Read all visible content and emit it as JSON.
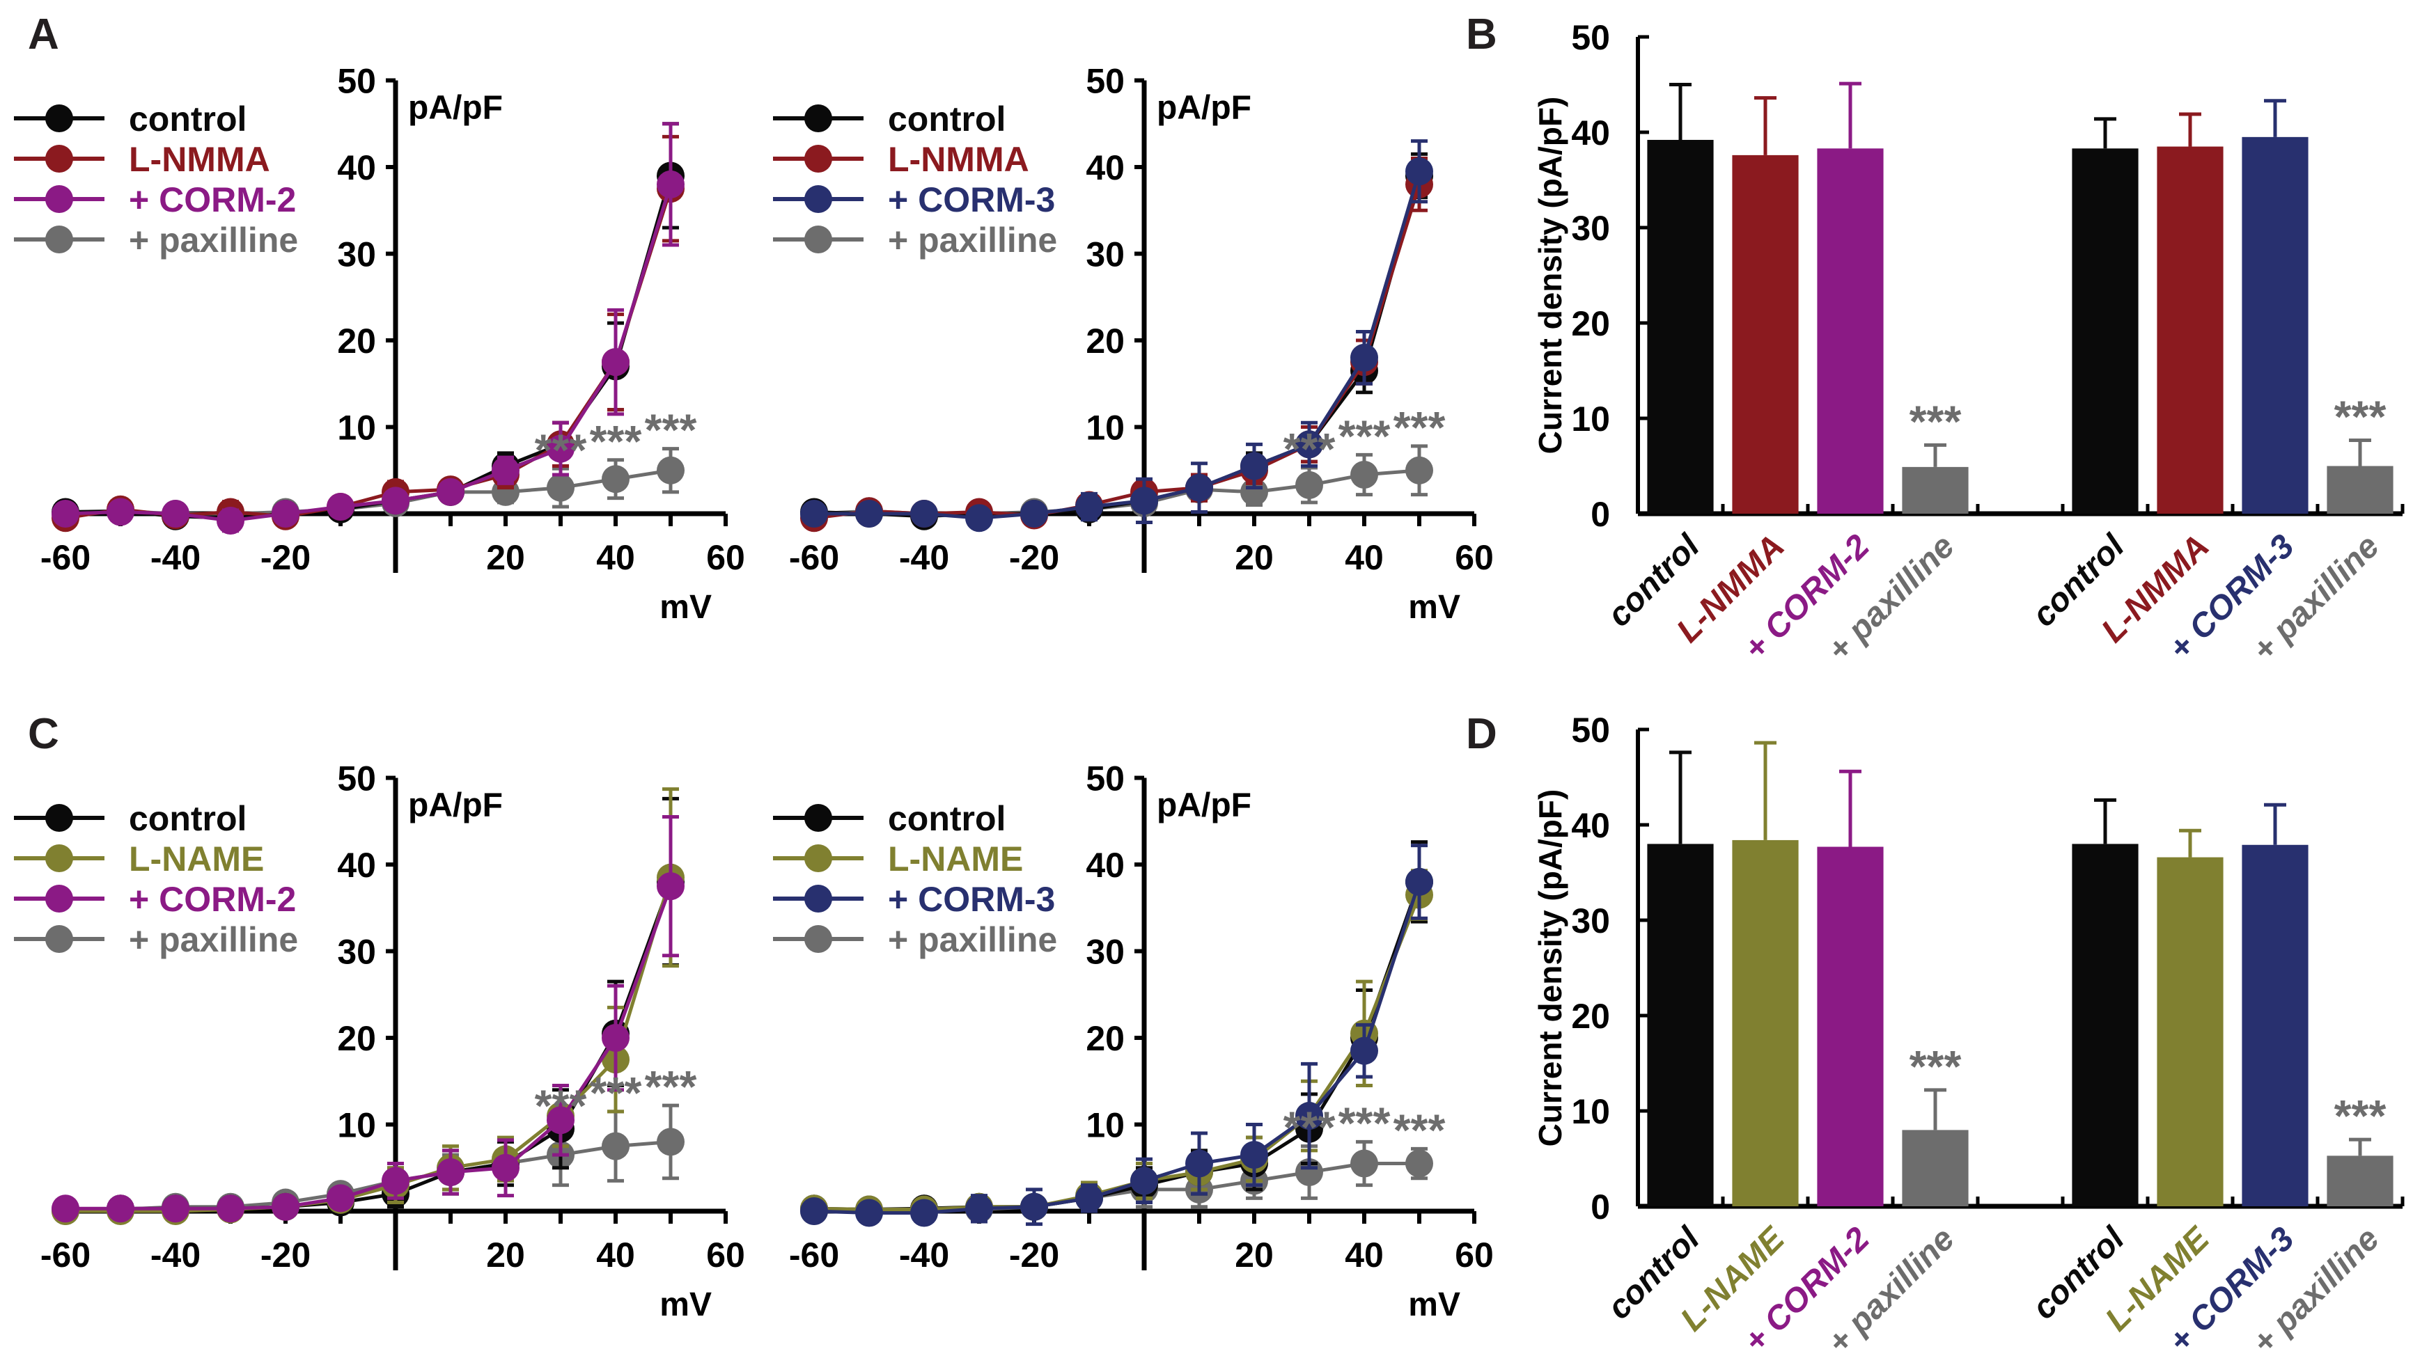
{
  "colors": {
    "control": "#0a0a0a",
    "L-NMMA": "#8b1a1f",
    "L-NAME": "#808030",
    "+ CORM-2": "#8b1a85",
    "+ CORM-3": "#28306f",
    "+ paxilline": "#6d6d6d"
  },
  "chart_data": [
    {
      "id": "A-left",
      "panel_label": "A",
      "type": "line",
      "xlabel": "mV",
      "ylabel": "pA/pF",
      "xlim": [
        -60,
        60
      ],
      "ylim": [
        0,
        50
      ],
      "xticks": [
        -60,
        -40,
        -20,
        20,
        40,
        60
      ],
      "yticks": [
        10,
        20,
        30,
        40,
        50
      ],
      "x": [
        -60,
        -50,
        -40,
        -30,
        -20,
        -10,
        0,
        10,
        20,
        30,
        40,
        50
      ],
      "legend_position": "top-left",
      "annotation": "***",
      "series": [
        {
          "name": "control",
          "values": [
            0.2,
            0.3,
            -0.3,
            -0.5,
            0,
            0.5,
            1.5,
            2.5,
            5.5,
            8,
            17,
            39
          ],
          "errors": [
            0.5,
            0.8,
            0.8,
            1.2,
            0.8,
            0.8,
            1,
            1,
            1.5,
            2.5,
            5,
            6
          ]
        },
        {
          "name": "L-NMMA",
          "values": [
            -0.5,
            0.5,
            -0.2,
            0.2,
            -0.3,
            0.8,
            2.5,
            2.8,
            4.5,
            8,
            17.5,
            37.5
          ],
          "errors": [
            0.8,
            0.8,
            0.8,
            1.2,
            1,
            1,
            1.2,
            1,
            1.5,
            2.5,
            5.5,
            6
          ]
        },
        {
          "name": "+ CORM-2",
          "values": [
            0,
            0.2,
            0,
            -0.8,
            0,
            0.8,
            1.5,
            2.5,
            5,
            7.5,
            17.5,
            38
          ],
          "errors": [
            0.5,
            0.6,
            0.8,
            1.2,
            0.8,
            1,
            1,
            1,
            1.5,
            3,
            6,
            7
          ]
        },
        {
          "name": "+ paxilline",
          "values": [
            0,
            0.3,
            0,
            0,
            0.2,
            0.5,
            1.2,
            2.5,
            2.5,
            3,
            4,
            5
          ],
          "errors": [
            0.3,
            0.3,
            0.3,
            0.3,
            0.3,
            0.5,
            0.8,
            1,
            1.2,
            2.2,
            2.2,
            2.5
          ]
        }
      ]
    },
    {
      "id": "A-right",
      "panel_label": "",
      "type": "line",
      "xlabel": "mV",
      "ylabel": "pA/pF",
      "xlim": [
        -60,
        60
      ],
      "ylim": [
        0,
        50
      ],
      "xticks": [
        -60,
        -40,
        -20,
        20,
        40,
        60
      ],
      "yticks": [
        10,
        20,
        30,
        40,
        50
      ],
      "x": [
        -60,
        -50,
        -40,
        -30,
        -20,
        -10,
        0,
        10,
        20,
        30,
        40,
        50
      ],
      "legend_position": "top-left",
      "annotation": "***",
      "series": [
        {
          "name": "control",
          "values": [
            0.2,
            0,
            -0.3,
            0,
            0,
            0.5,
            1.5,
            3,
            5.5,
            8,
            16.5,
            39
          ],
          "errors": [
            0.5,
            0.5,
            0.5,
            0.8,
            0.8,
            1,
            1,
            1.5,
            1.5,
            2,
            2.5,
            2.5
          ]
        },
        {
          "name": "L-NMMA",
          "values": [
            -0.5,
            0.3,
            0,
            0.2,
            -0.2,
            1,
            2.5,
            3,
            5,
            8,
            17.5,
            38
          ],
          "errors": [
            0.8,
            0.8,
            0.5,
            0.8,
            0.8,
            1,
            1,
            1.5,
            1.5,
            2,
            2.5,
            3
          ]
        },
        {
          "name": "+ CORM-3",
          "values": [
            0,
            0,
            0,
            -0.5,
            0,
            0.8,
            1.5,
            3,
            5.5,
            8,
            18,
            39.5
          ],
          "errors": [
            0.5,
            0.5,
            0.5,
            0.8,
            0.8,
            1.5,
            2.5,
            2.8,
            2.5,
            2.5,
            3,
            3.5
          ]
        },
        {
          "name": "+ paxilline",
          "values": [
            0,
            0.3,
            0,
            0,
            0.2,
            0.5,
            1.2,
            2.8,
            2.5,
            3.3,
            4.5,
            5
          ],
          "errors": [
            0.3,
            0.3,
            0.3,
            0.3,
            0.3,
            0.5,
            0.8,
            1,
            1.5,
            2,
            2.3,
            2.8
          ]
        }
      ]
    },
    {
      "id": "B",
      "panel_label": "B",
      "type": "bar",
      "ylabel": "Current density (pA/pF)",
      "ylim": [
        0,
        50
      ],
      "yticks": [
        0,
        10,
        20,
        30,
        40,
        50
      ],
      "groups": [
        {
          "categories": [
            "control",
            "L-NMMA",
            "+ CORM-2",
            "+ paxilline"
          ],
          "values": [
            39.2,
            37.6,
            38.3,
            4.9
          ],
          "errors": [
            5.8,
            6.0,
            6.8,
            2.3
          ],
          "annotations": [
            "",
            "",
            "",
            "***"
          ]
        },
        {
          "categories": [
            "control",
            "L-NMMA",
            "+ CORM-3",
            "+ paxilline"
          ],
          "values": [
            38.3,
            38.5,
            39.5,
            5.0
          ],
          "errors": [
            3.1,
            3.4,
            3.8,
            2.7
          ],
          "annotations": [
            "",
            "",
            "",
            "***"
          ]
        }
      ]
    },
    {
      "id": "C-left",
      "panel_label": "C",
      "type": "line",
      "xlabel": "mV",
      "ylabel": "pA/pF",
      "xlim": [
        -60,
        60
      ],
      "ylim": [
        0,
        50
      ],
      "xticks": [
        -60,
        -40,
        -20,
        20,
        40,
        60
      ],
      "yticks": [
        10,
        20,
        30,
        40,
        50
      ],
      "x": [
        -60,
        -50,
        -40,
        -30,
        -20,
        -10,
        0,
        10,
        20,
        30,
        40,
        50
      ],
      "legend_position": "top-left",
      "annotation": "***",
      "series": [
        {
          "name": "control",
          "values": [
            0.2,
            0.3,
            0.3,
            0.3,
            0.5,
            1,
            2,
            4.5,
            5.5,
            9.5,
            20.5,
            38
          ],
          "errors": [
            0.3,
            0.3,
            0.3,
            0.3,
            0.5,
            0.8,
            1.5,
            2.5,
            2.5,
            4.5,
            6,
            9.6
          ]
        },
        {
          "name": "L-NAME",
          "values": [
            0,
            0,
            0,
            0.2,
            0.5,
            1.3,
            3,
            5,
            6,
            11,
            17.5,
            38.5
          ],
          "errors": [
            0.3,
            0.3,
            0.3,
            0.3,
            0.5,
            0.8,
            2,
            2.5,
            2.5,
            3.5,
            6,
            10.2
          ]
        },
        {
          "name": "+ CORM-2",
          "values": [
            0.3,
            0.3,
            0.3,
            0.3,
            0.5,
            1.5,
            3.5,
            4.5,
            5,
            10.5,
            20,
            37.5
          ],
          "errors": [
            0.3,
            0.3,
            0.3,
            0.3,
            0.5,
            0.8,
            2,
            2.5,
            3.2,
            4,
            6,
            8
          ]
        },
        {
          "name": "+ paxilline",
          "values": [
            0,
            0.2,
            0.5,
            0.5,
            1,
            2,
            3.5,
            4.5,
            5.5,
            6.5,
            7.5,
            8
          ],
          "errors": [
            0.3,
            0.3,
            0.3,
            0.3,
            0.5,
            0.8,
            1.5,
            2,
            2.5,
            3.5,
            4,
            4.2
          ]
        }
      ]
    },
    {
      "id": "C-right",
      "panel_label": "",
      "type": "line",
      "xlabel": "mV",
      "ylabel": "pA/pF",
      "xlim": [
        -60,
        60
      ],
      "ylim": [
        0,
        50
      ],
      "xticks": [
        -60,
        -40,
        -20,
        20,
        40,
        60
      ],
      "yticks": [
        10,
        20,
        30,
        40,
        50
      ],
      "x": [
        -60,
        -50,
        -40,
        -30,
        -20,
        -10,
        0,
        10,
        20,
        30,
        40,
        50
      ],
      "legend_position": "top-left",
      "annotation": "***",
      "series": [
        {
          "name": "control",
          "values": [
            0.3,
            0.2,
            0.3,
            0.5,
            0.5,
            1.5,
            3,
            4.5,
            5.5,
            9.5,
            20,
            38
          ],
          "errors": [
            0.3,
            0.3,
            0.3,
            0.5,
            0.8,
            1.5,
            2,
            2.5,
            3,
            4,
            5.5,
            4.6
          ]
        },
        {
          "name": "L-NAME",
          "values": [
            0.3,
            0.2,
            0.2,
            0.5,
            0.5,
            1.8,
            3.5,
            4.5,
            6,
            11,
            20.5,
            36.5
          ],
          "errors": [
            0.3,
            0.3,
            0.3,
            0.5,
            0.8,
            1.5,
            2,
            2,
            2.5,
            4,
            6,
            2.8
          ]
        },
        {
          "name": "+ CORM-3",
          "values": [
            0,
            -0.2,
            -0.2,
            0.3,
            0.5,
            1.5,
            3.5,
            5.5,
            6.5,
            11,
            18.5,
            38
          ],
          "errors": [
            0.3,
            0.3,
            0.5,
            1.5,
            2,
            1.5,
            2.5,
            3.5,
            3.5,
            6,
            3,
            4.2
          ]
        },
        {
          "name": "+ paxilline",
          "values": [
            0,
            0,
            0.3,
            0.2,
            0.5,
            1.5,
            2.5,
            2.5,
            3.5,
            4.5,
            5.5,
            5.5
          ],
          "errors": [
            0.3,
            0.3,
            0.3,
            0.5,
            0.8,
            1,
            2,
            2,
            2,
            3,
            2.5,
            1.7
          ]
        }
      ]
    },
    {
      "id": "D",
      "panel_label": "D",
      "type": "bar",
      "ylabel": "Current density (pA/pF)",
      "ylim": [
        0,
        50
      ],
      "yticks": [
        0,
        10,
        20,
        30,
        40,
        50
      ],
      "groups": [
        {
          "categories": [
            "control",
            "L-NAME",
            "+ CORM-2",
            "+ paxilline"
          ],
          "values": [
            38.0,
            38.4,
            37.7,
            8.0
          ],
          "errors": [
            9.6,
            10.2,
            7.9,
            4.2
          ],
          "annotations": [
            "",
            "",
            "",
            "***"
          ]
        },
        {
          "categories": [
            "control",
            "L-NAME",
            "+ CORM-3",
            "+ paxilline"
          ],
          "values": [
            38.0,
            36.6,
            37.9,
            5.3
          ],
          "errors": [
            4.6,
            2.8,
            4.2,
            1.7
          ],
          "annotations": [
            "",
            "",
            "",
            "***"
          ]
        }
      ]
    }
  ]
}
